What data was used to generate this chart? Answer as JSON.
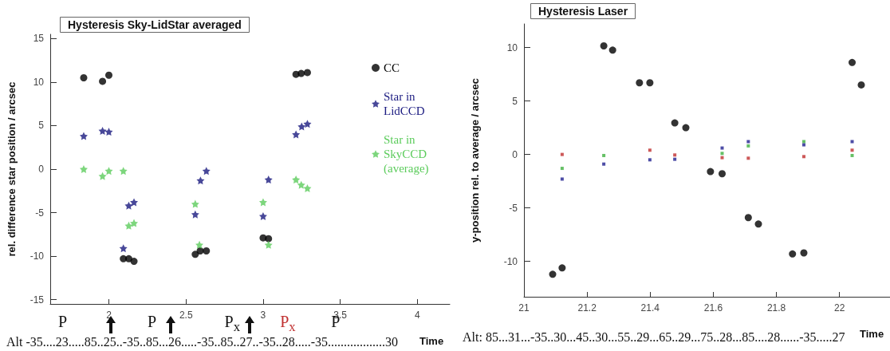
{
  "chart_data": [
    {
      "type": "scatter",
      "title": "Hysteresis Sky-LidStar averaged",
      "xlabel": "Time",
      "ylabel": "rel. difference star position / arcsec",
      "xlim": [
        1.62,
        4.21
      ],
      "ylim": [
        -15.5,
        15.5
      ],
      "xticks": [
        2,
        2.5,
        3,
        3.5,
        4
      ],
      "yticks": [
        -15,
        -10,
        -5,
        0,
        5,
        10,
        15
      ],
      "legend": "top right",
      "series": [
        {
          "name": "CC",
          "color": "#000000",
          "marker": "circle",
          "x": [
            1.837,
            1.959,
            2.0,
            2.094,
            2.129,
            2.163,
            2.56,
            2.592,
            2.632,
            3.0,
            3.035,
            3.213,
            3.247,
            3.287
          ],
          "values": [
            10.5,
            10.1,
            10.8,
            -10.3,
            -10.3,
            -10.6,
            -9.8,
            -9.4,
            -9.4,
            -7.9,
            -8.0,
            10.9,
            11.0,
            11.1
          ]
        },
        {
          "name": "Star in LidCCD",
          "color": "#1a1a80",
          "marker": "star",
          "x": [
            1.837,
            1.959,
            2.0,
            2.094,
            2.129,
            2.163,
            2.56,
            2.594,
            2.632,
            3.0,
            3.035,
            3.213,
            3.25,
            3.287
          ],
          "values": [
            3.8,
            4.4,
            4.3,
            -9.1,
            -4.2,
            -3.8,
            -5.2,
            -1.3,
            -0.2,
            -5.4,
            -1.2,
            4.0,
            4.9,
            5.2
          ]
        },
        {
          "name": "Star in SkyCCD (average)",
          "color": "#5ccc5c",
          "marker": "star",
          "x": [
            1.837,
            1.959,
            2.0,
            2.094,
            2.129,
            2.163,
            2.56,
            2.587,
            3.0,
            3.035,
            3.213,
            3.247,
            3.287
          ],
          "values": [
            0.0,
            -0.8,
            -0.2,
            -0.2,
            -6.5,
            -6.2,
            -4.0,
            -8.7,
            -3.8,
            -8.7,
            -1.2,
            -1.8,
            -2.2
          ]
        }
      ],
      "annotations": [
        "P",
        "P",
        "P$_{x}$",
        "P$_{x}$",
        "P",
        "Alt -35....23.....85..25..-35..85...26.....-35..85..27..-35..28.....-35..................30"
      ]
    },
    {
      "type": "scatter",
      "title": "Hysteresis Laser",
      "xlabel": "Time",
      "ylabel": "y-position rel. to average / arcsec",
      "xlim": [
        21,
        22.16
      ],
      "ylim": [
        -13.3,
        12.2
      ],
      "xticks": [
        21,
        21.2,
        21.4,
        21.6,
        21.8,
        22
      ],
      "yticks": [
        -10,
        -5,
        0,
        5,
        10
      ],
      "series": [
        {
          "color": "#000000",
          "marker": "circle",
          "x": [
            21.091,
            21.121,
            21.253,
            21.281,
            21.366,
            21.399,
            21.478,
            21.513,
            21.591,
            21.628,
            21.711,
            21.743,
            21.851,
            21.887,
            22.04,
            22.069
          ],
          "values": [
            -11.2,
            -10.6,
            10.15,
            9.75,
            6.7,
            6.7,
            2.95,
            2.5,
            -1.6,
            -1.8,
            -5.9,
            -6.5,
            -9.3,
            -9.2,
            8.6,
            6.5
          ]
        },
        {
          "color": "#c03030",
          "marker": "square",
          "x": [
            21.121,
            21.253,
            21.399,
            21.478,
            21.628,
            21.711,
            21.887,
            22.04
          ],
          "values": [
            0,
            null,
            0.4,
            -0.05,
            -0.3,
            -0.35,
            -0.2,
            0.4
          ]
        },
        {
          "color": "#40b040",
          "marker": "square",
          "x": [
            21.121,
            21.253,
            21.399,
            21.478,
            21.628,
            21.711,
            21.887,
            22.04
          ],
          "values": [
            -1.3,
            -0.1,
            null,
            null,
            0.1,
            0.8,
            1.2,
            -0.1
          ]
        },
        {
          "color": "#202090",
          "marker": "square",
          "x": [
            21.121,
            21.253,
            21.399,
            21.478,
            21.628,
            21.711,
            21.887,
            22.04
          ],
          "values": [
            -2.3,
            -0.9,
            -0.5,
            -0.45,
            0.6,
            1.2,
            0.9,
            1.2
          ]
        }
      ],
      "annotations": [
        "Alt: 85...31...-35..30...45..30...55..29...65..29...75..28...85....28......-35.....27"
      ]
    }
  ]
}
